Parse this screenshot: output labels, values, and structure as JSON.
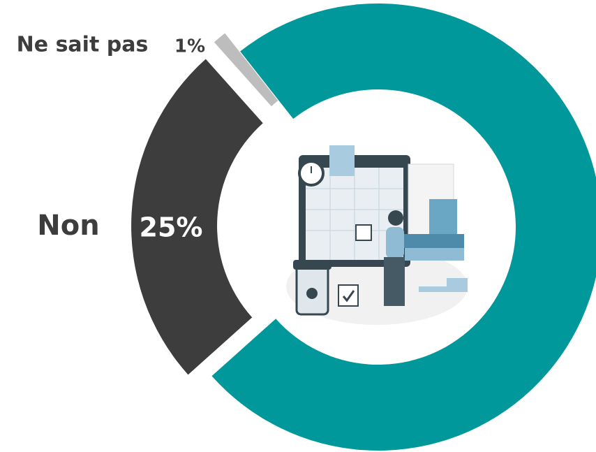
{
  "chart_data": {
    "type": "donut",
    "categories": [
      null,
      "Non",
      "Ne sait pas"
    ],
    "values": [
      74,
      25,
      1
    ],
    "value_labels": [
      null,
      "25%",
      "1%"
    ],
    "colors": [
      "#00989a",
      "#3d3d3d",
      "#bdbdbd"
    ]
  }
}
